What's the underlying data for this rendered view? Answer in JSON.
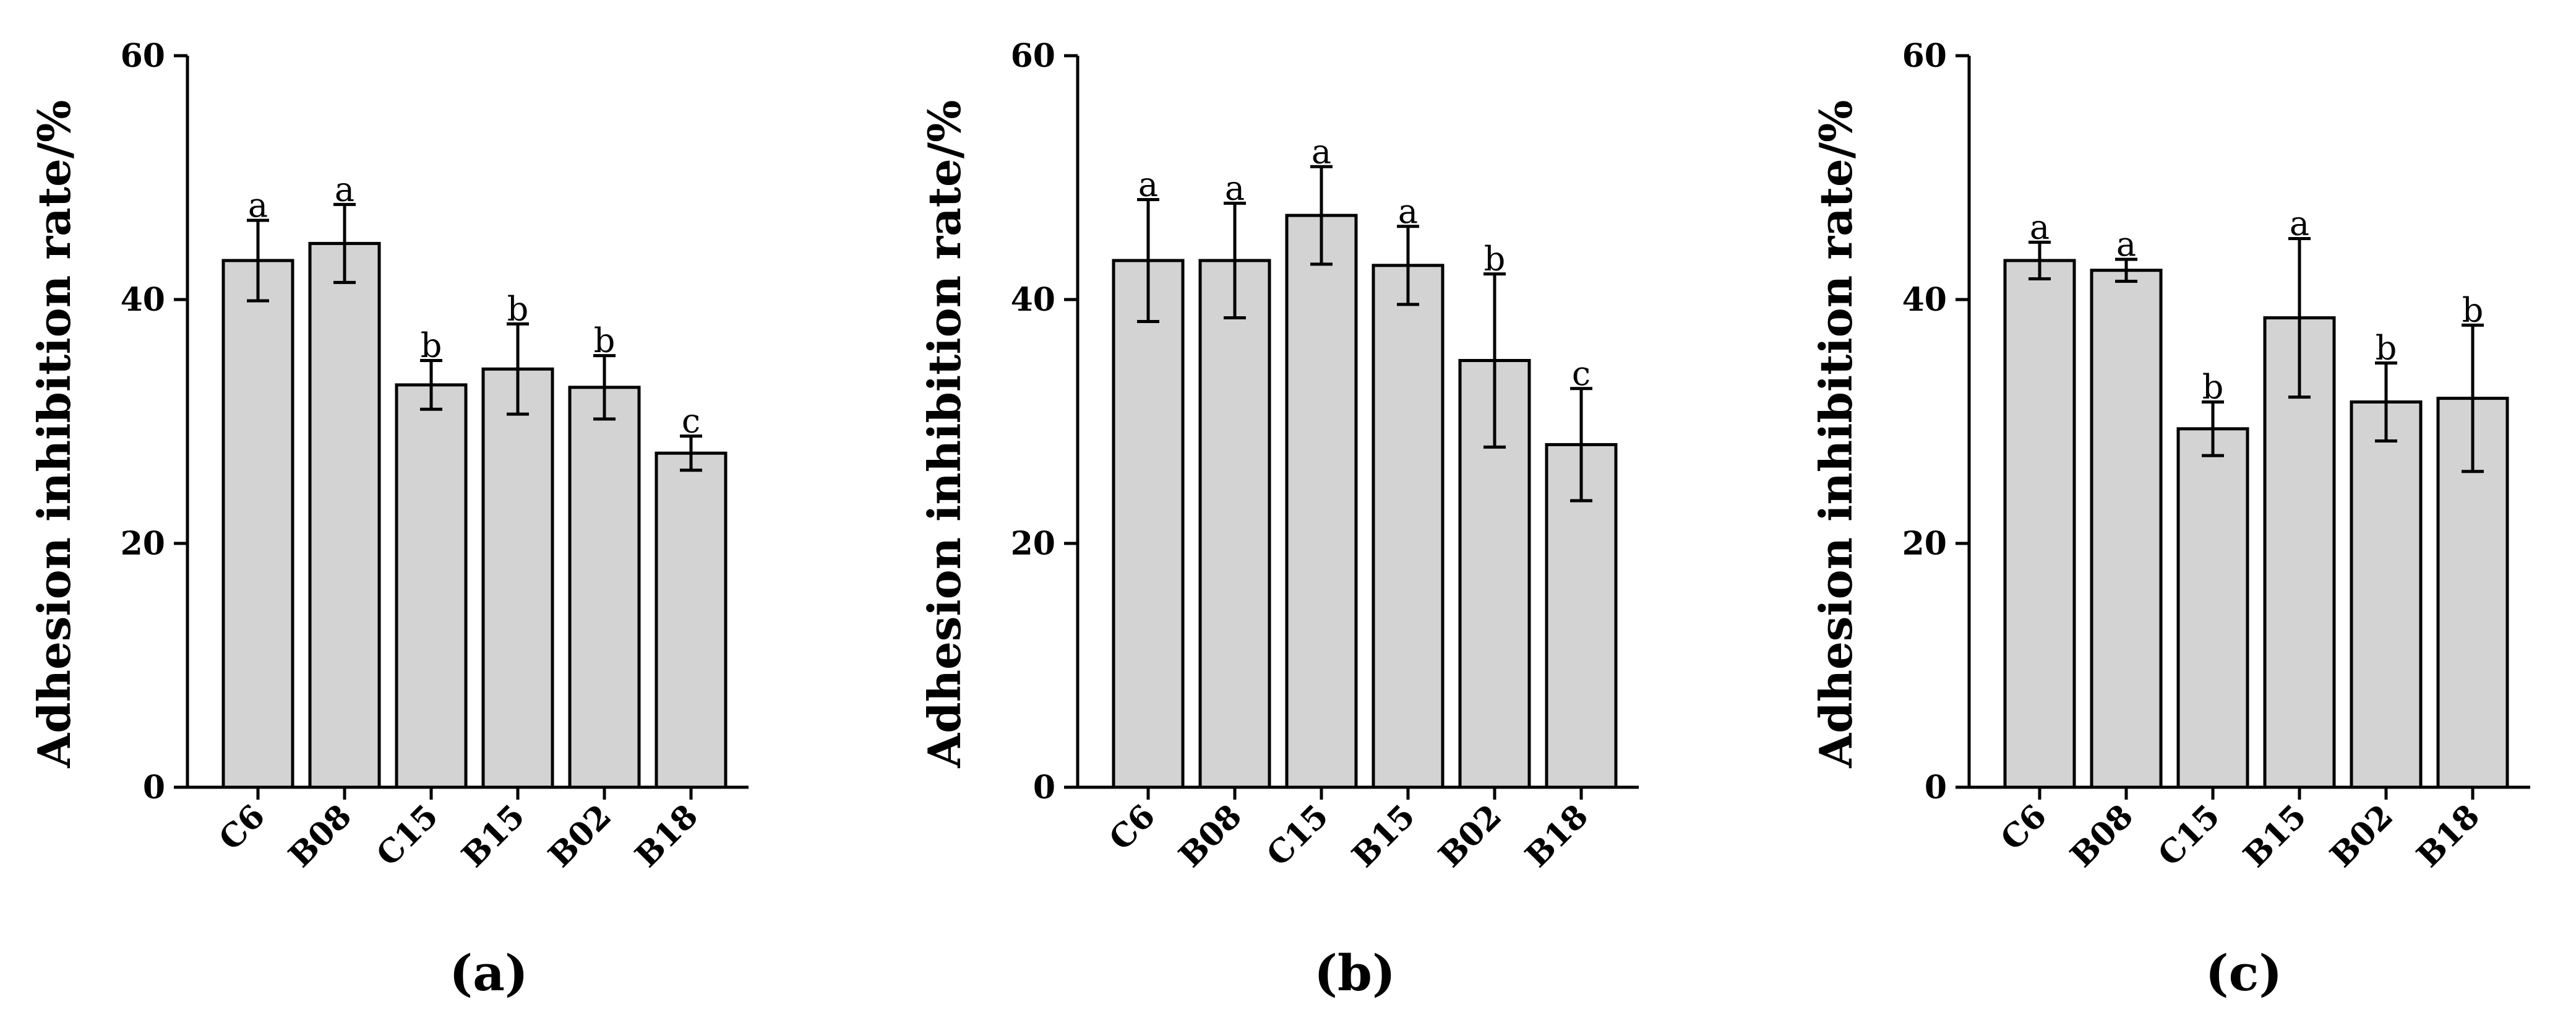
{
  "chart_data": [
    {
      "type": "bar",
      "panel_label": "(a)",
      "ylabel": "Adhesion inhibition rate/%",
      "ylim": [
        0,
        60
      ],
      "yticks": [
        "0",
        "20",
        "40",
        "60"
      ],
      "categories": [
        "C6",
        "B08",
        "C15",
        "B15",
        "B02",
        "B18"
      ],
      "values": [
        43.2,
        44.6,
        33.0,
        34.3,
        32.8,
        27.4
      ],
      "errors": [
        3.3,
        3.2,
        2.0,
        3.7,
        2.6,
        1.4
      ],
      "letters": [
        "a",
        "a",
        "b",
        "b",
        "b",
        "c"
      ],
      "grid": false,
      "bar_color": "#d3d3d3"
    },
    {
      "type": "bar",
      "panel_label": "(b)",
      "ylabel": "Adhesion inhibition rate/%",
      "ylim": [
        0,
        60
      ],
      "yticks": [
        "0",
        "20",
        "40",
        "60"
      ],
      "categories": [
        "C6",
        "B08",
        "C15",
        "B15",
        "B02",
        "B18"
      ],
      "values": [
        43.2,
        43.2,
        46.9,
        42.8,
        35.0,
        28.1
      ],
      "errors": [
        5.0,
        4.7,
        4.0,
        3.2,
        7.1,
        4.6
      ],
      "letters": [
        "a",
        "a",
        "a",
        "a",
        "b",
        "c"
      ],
      "grid": false,
      "bar_color": "#d3d3d3"
    },
    {
      "type": "bar",
      "panel_label": "(c)",
      "ylabel": "Adhesion inhibition rate/%",
      "ylim": [
        0,
        60
      ],
      "yticks": [
        "0",
        "20",
        "40",
        "60"
      ],
      "categories": [
        "C6",
        "B08",
        "C15",
        "B15",
        "B02",
        "B18"
      ],
      "values": [
        43.2,
        42.4,
        29.4,
        38.5,
        31.6,
        31.9
      ],
      "errors": [
        1.5,
        0.9,
        2.2,
        6.5,
        3.2,
        6.0
      ],
      "letters": [
        "a",
        "a",
        "b",
        "a",
        "b",
        "b"
      ],
      "grid": false,
      "bar_color": "#d3d3d3"
    }
  ]
}
